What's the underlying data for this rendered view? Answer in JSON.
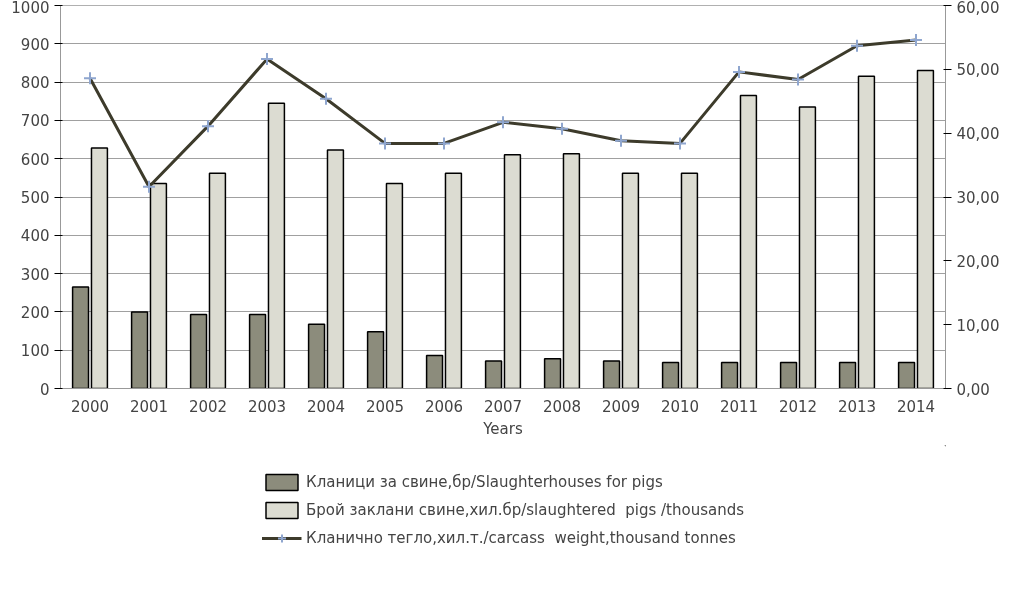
{
  "chart_data": {
    "type": "bar",
    "xlabel": "Years",
    "categories": [
      "2000",
      "2001",
      "2002",
      "2003",
      "2004",
      "2005",
      "2006",
      "2007",
      "2008",
      "2009",
      "2010",
      "2011",
      "2012",
      "2013",
      "2014"
    ],
    "series": [
      {
        "name": "Кланици за свине,бр/Slaughterhouses for pigs",
        "color": "#8c8c7c",
        "values": [
          265,
          200,
          193,
          193,
          168,
          148,
          86,
          72,
          78,
          72,
          68,
          68,
          68,
          68,
          68
        ]
      },
      {
        "name": "Брой заклани свине,хил.бр/slaughtered  pigs /thousands",
        "color": "#dcdcd2",
        "values": [
          628,
          535,
          562,
          745,
          623,
          535,
          562,
          610,
          613,
          562,
          562,
          765,
          735,
          815,
          830
        ]
      },
      {
        "name": "Кланично тегло,хил.т./carcass  weight,thousand tonnes",
        "type": "line",
        "axis": "y2",
        "color": "#3d3b2b",
        "marker": "cross",
        "values": [
          48.6,
          31.6,
          41.1,
          51.6,
          45.4,
          38.4,
          38.4,
          41.7,
          40.7,
          38.8,
          38.4,
          49.6,
          48.4,
          53.7,
          54.6
        ]
      }
    ],
    "ylim": [
      0,
      1000
    ],
    "yticks": [
      0,
      100,
      200,
      300,
      400,
      500,
      600,
      700,
      800,
      900,
      1000
    ],
    "y2lim": [
      0,
      60
    ],
    "y2ticks": [
      {
        "value": 0,
        "label": "0,00"
      },
      {
        "value": 10,
        "label": "10,00"
      },
      {
        "value": 20,
        "label": "20,00"
      },
      {
        "value": 30,
        "label": "30,00"
      },
      {
        "value": 40,
        "label": "40,00"
      },
      {
        "value": 50,
        "label": "50,00"
      },
      {
        "value": 60,
        "label": "60,00"
      }
    ],
    "grid": "y",
    "legend": "bottom",
    "line_style": "solid"
  }
}
